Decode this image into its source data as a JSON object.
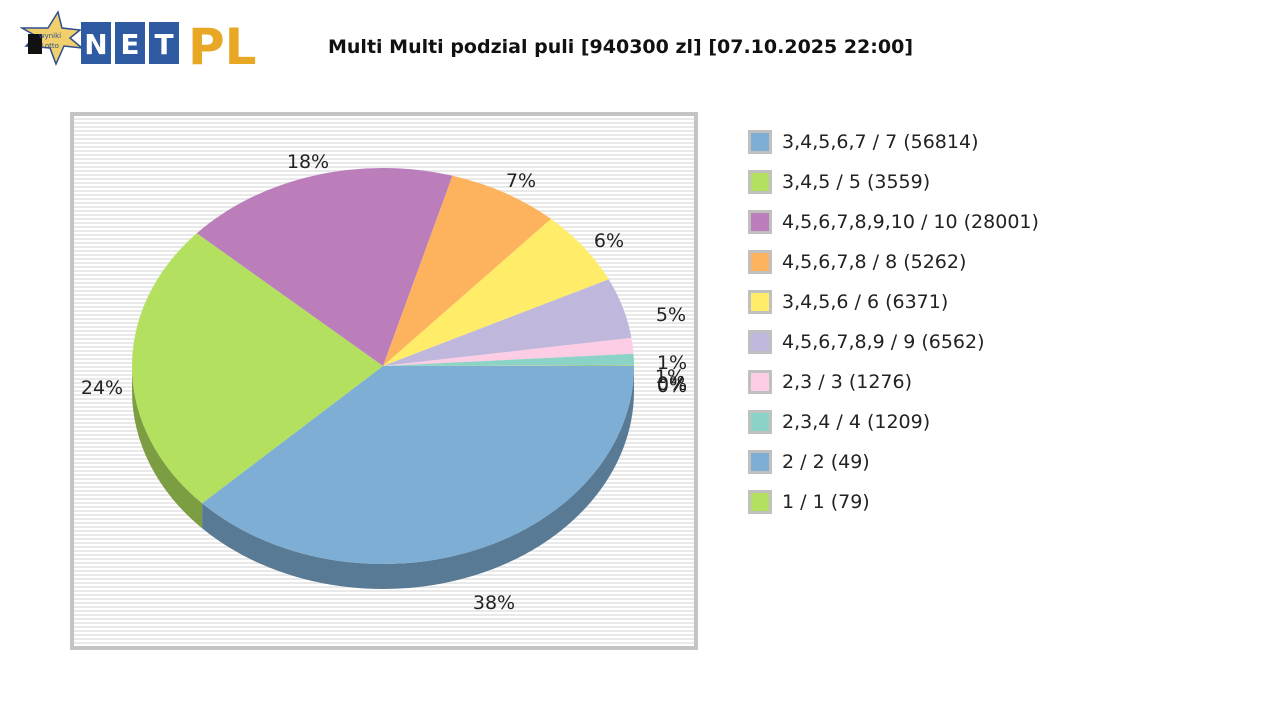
{
  "header": {
    "logo": {
      "badge_line1": "wyniki",
      "badge_line2": "Lotto",
      "net_letters": [
        "N",
        "E",
        "T"
      ],
      "pl_text": "PL"
    },
    "title": "Multi Multi podzial puli [940300 zl] [07.10.2025 22:00]"
  },
  "legend": {
    "items": [
      {
        "label": "3,4,5,6,7 / 7 (56814)",
        "color": "#7eaed4"
      },
      {
        "label": "3,4,5 / 5 (3559)",
        "color": "#b3e05f"
      },
      {
        "label": "4,5,6,7,8,9,10 / 10 (28001)",
        "color": "#bb7ebb"
      },
      {
        "label": "4,5,6,7,8 / 8 (5262)",
        "color": "#fdb35d"
      },
      {
        "label": "3,4,5,6 / 6 (6371)",
        "color": "#ffec68"
      },
      {
        "label": "4,5,6,7,8,9 / 9 (6562)",
        "color": "#bfb8dc"
      },
      {
        "label": "2,3 / 3 (1276)",
        "color": "#fdcce5"
      },
      {
        "label": "2,3,4 / 4 (1209)",
        "color": "#8bd3c6"
      },
      {
        "label": "2 / 2 (49)",
        "color": "#7eaed4"
      },
      {
        "label": "1 / 1 (79)",
        "color": "#b3e05f"
      }
    ]
  },
  "chart_data": {
    "type": "pie",
    "title": "Multi Multi podzial puli [940300 zl] [07.10.2025 22:00]",
    "style": "3d",
    "categories": [
      "3,4,5,6,7 / 7 (56814)",
      "3,4,5 / 5 (3559)",
      "4,5,6,7,8,9,10 / 10 (28001)",
      "4,5,6,7,8 / 8 (5262)",
      "3,4,5,6 / 6 (6371)",
      "4,5,6,7,8,9 / 9 (6562)",
      "2,3 / 3 (1276)",
      "2,3,4 / 4 (1209)",
      "2 / 2 (49)",
      "1 / 1 (79)"
    ],
    "values": [
      38,
      24,
      18,
      7,
      6,
      5,
      1,
      1,
      0,
      0
    ],
    "value_labels": [
      "38%",
      "24%",
      "18%",
      "7%",
      "6%",
      "5%",
      "1%",
      "1%",
      "0%",
      "0%"
    ],
    "winner_counts": [
      56814,
      3559,
      28001,
      5262,
      6371,
      6562,
      1276,
      1209,
      49,
      79
    ],
    "colors": [
      "#7eaed4",
      "#b3e05f",
      "#bb7ebb",
      "#fdb35d",
      "#ffec68",
      "#bfb8dc",
      "#fdcce5",
      "#8bd3c6",
      "#7eaed4",
      "#b3e05f"
    ],
    "legend_position": "right"
  }
}
